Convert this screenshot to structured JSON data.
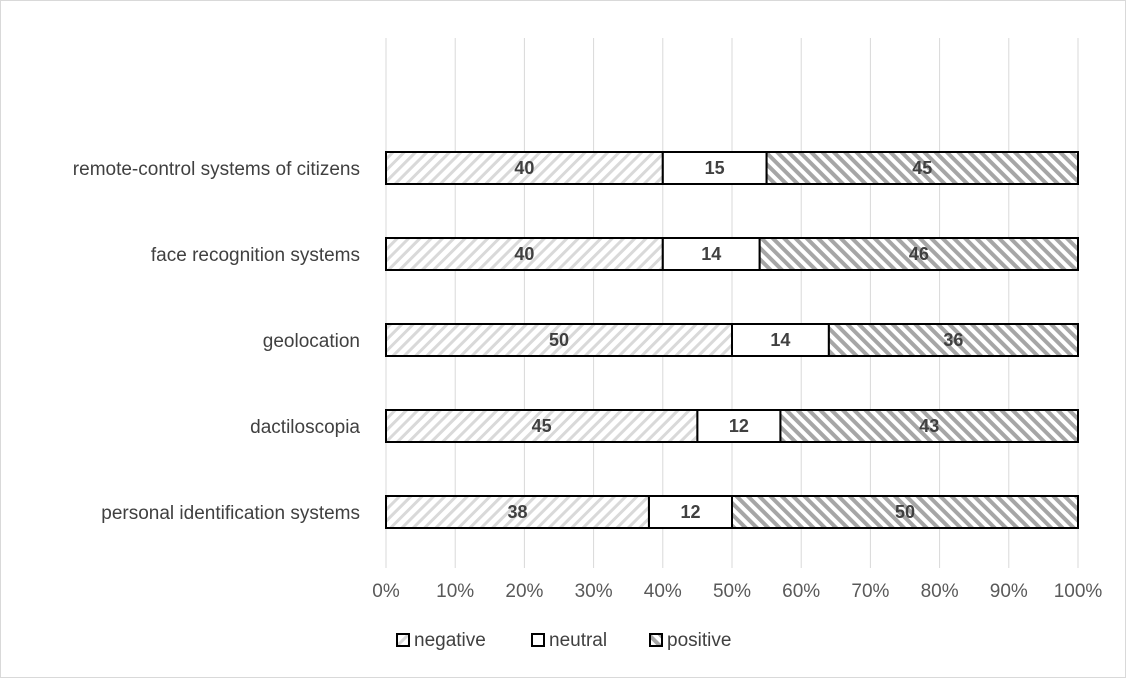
{
  "chart_data": {
    "type": "bar",
    "orientation": "horizontal",
    "stacked": "percent",
    "categories": [
      "remote-control systems of citizens",
      "face recognition systems",
      "geolocation",
      "dactiloscopia",
      "personal identification systems"
    ],
    "series": [
      {
        "name": "negative",
        "values": [
          40,
          40,
          50,
          45,
          38
        ],
        "pattern": "light-diagonal-stripes"
      },
      {
        "name": "neutral",
        "values": [
          15,
          14,
          14,
          12,
          12
        ],
        "pattern": "solid-white"
      },
      {
        "name": "positive",
        "values": [
          45,
          46,
          36,
          43,
          50
        ],
        "pattern": "dark-diagonal-stripes"
      }
    ],
    "xlim": [
      0,
      100
    ],
    "x_ticks": [
      "0%",
      "10%",
      "20%",
      "30%",
      "40%",
      "50%",
      "60%",
      "70%",
      "80%",
      "90%",
      "100%"
    ],
    "grid": "vertical",
    "legend_position": "bottom",
    "colors": {
      "negative_stripe": "#d9d9d9",
      "positive_stripe": "#a6a6a6",
      "bar_border": "#000000",
      "gridline": "#d9d9d9",
      "text": "#404040"
    }
  }
}
